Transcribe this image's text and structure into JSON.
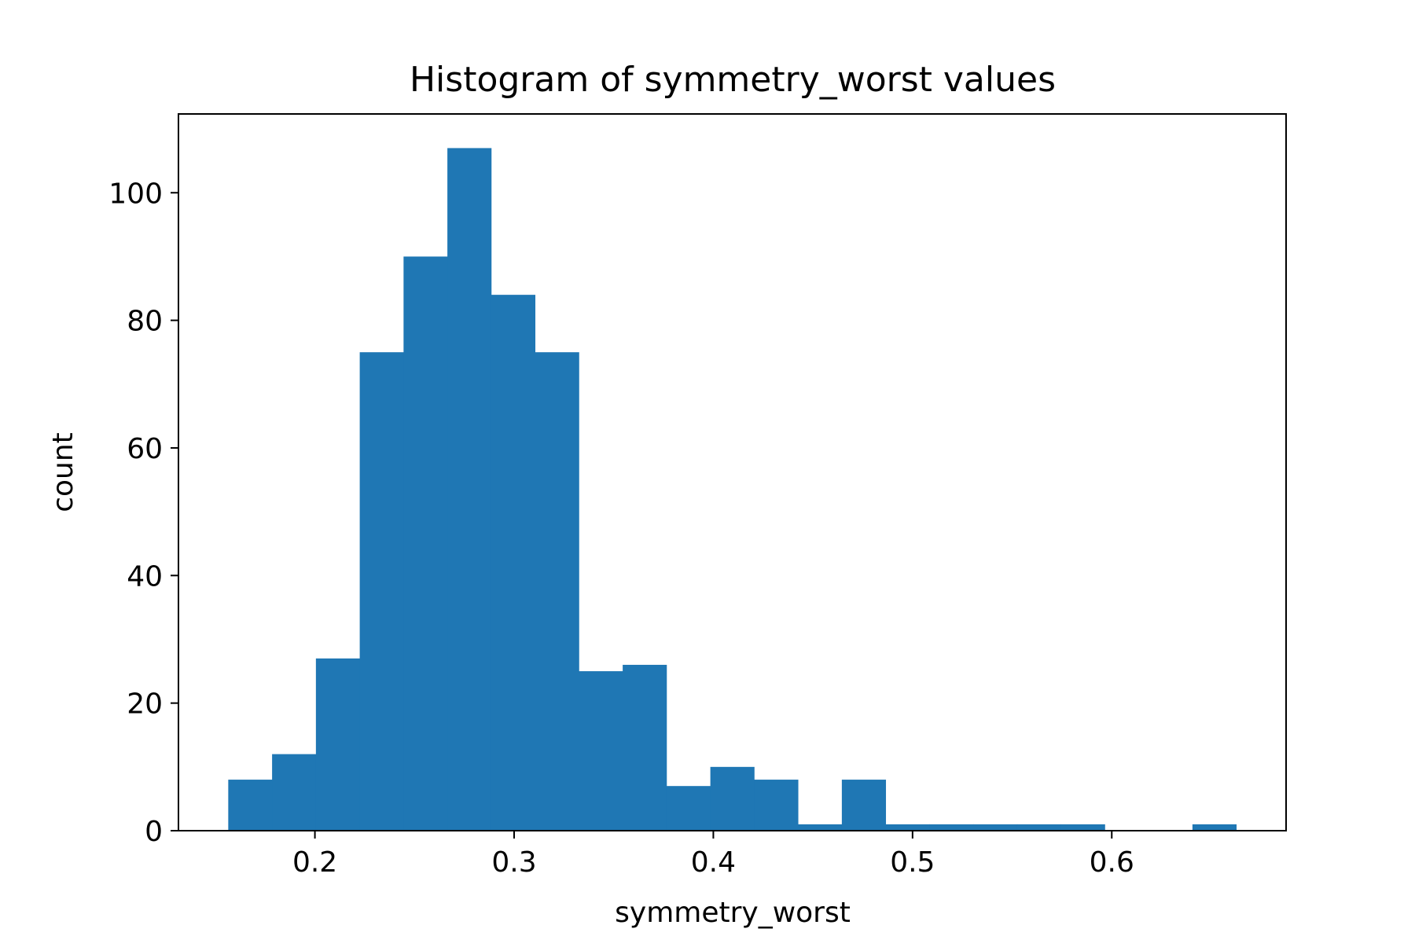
{
  "chart_data": {
    "type": "bar",
    "title": "Histogram of symmetry_worst values",
    "xlabel": "symmetry_worst",
    "ylabel": "count",
    "bin_edges": [
      0.1565,
      0.1785,
      0.2005,
      0.2225,
      0.2445,
      0.2665,
      0.2885,
      0.3105,
      0.3325,
      0.3545,
      0.3765,
      0.3985,
      0.4205,
      0.4425,
      0.4645,
      0.4865,
      0.5085,
      0.5305,
      0.5525,
      0.5745,
      0.5965,
      0.6185,
      0.6405,
      0.6625
    ],
    "counts": [
      8,
      12,
      27,
      75,
      90,
      107,
      84,
      75,
      25,
      26,
      7,
      10,
      8,
      1,
      8,
      1,
      1,
      1,
      1,
      1,
      0,
      0,
      1
    ],
    "xlim": [
      0.1315,
      0.6875
    ],
    "ylim": [
      0,
      112.35
    ],
    "xticks": [
      0.2,
      0.3,
      0.4,
      0.5,
      0.6
    ],
    "xtick_labels": [
      "0.2",
      "0.3",
      "0.4",
      "0.5",
      "0.6"
    ],
    "yticks": [
      0,
      20,
      40,
      60,
      80,
      100
    ],
    "ytick_labels": [
      "0",
      "20",
      "40",
      "60",
      "80",
      "100"
    ],
    "bar_color": "#1f77b4",
    "grid": false,
    "legend": false
  }
}
